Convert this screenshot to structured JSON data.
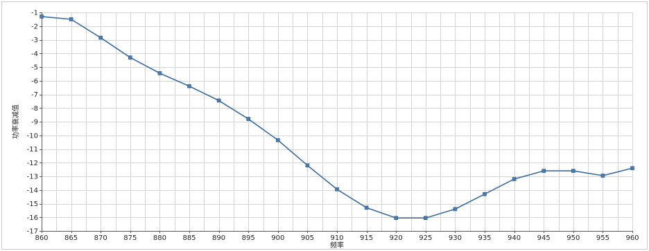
{
  "chart_data": {
    "type": "line",
    "title": "",
    "xlabel": "频率",
    "ylabel": "功率衰减值",
    "x": [
      860,
      865,
      870,
      875,
      880,
      885,
      890,
      895,
      900,
      905,
      910,
      915,
      920,
      925,
      930,
      935,
      940,
      945,
      950,
      955,
      960
    ],
    "series": [
      {
        "values": [
          -1.3,
          -1.5,
          -2.85,
          -4.3,
          -5.45,
          -6.4,
          -7.45,
          -8.8,
          -10.35,
          -12.2,
          -13.95,
          -15.3,
          -16.05,
          -16.05,
          -15.4,
          -14.3,
          -13.2,
          -12.6,
          -12.6,
          -12.95,
          -12.4
        ]
      }
    ],
    "xlim": [
      860,
      960
    ],
    "ylim": [
      -17,
      -1
    ],
    "x_ticks": [
      "860",
      "865",
      "870",
      "875",
      "880",
      "885",
      "890",
      "895",
      "900",
      "905",
      "910",
      "915",
      "920",
      "925",
      "930",
      "935",
      "940",
      "945",
      "950",
      "955",
      "960"
    ],
    "y_ticks": [
      "-1",
      "-2",
      "-3",
      "-4",
      "-5",
      "-6",
      "-7",
      "-8",
      "-9",
      "-10",
      "-11",
      "-12",
      "-13",
      "-14",
      "-15",
      "-16",
      "-17"
    ],
    "grid": true,
    "legend": "none",
    "colors": {
      "line": "#3a6a9e",
      "marker": "#4a7ab0",
      "grid": "#d4d4d4",
      "axis": "#555555",
      "frame": "#c8c8c8"
    }
  }
}
